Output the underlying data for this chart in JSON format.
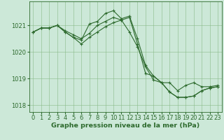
{
  "title": "Graphe pression niveau de la mer (hPa)",
  "x_labels": [
    "0",
    "1",
    "2",
    "3",
    "4",
    "5",
    "6",
    "7",
    "8",
    "9",
    "10",
    "11",
    "12",
    "13",
    "14",
    "15",
    "16",
    "17",
    "18",
    "19",
    "20",
    "21",
    "22",
    "23"
  ],
  "x_values": [
    0,
    1,
    2,
    3,
    4,
    5,
    6,
    7,
    8,
    9,
    10,
    11,
    12,
    13,
    14,
    15,
    16,
    17,
    18,
    19,
    20,
    21,
    22,
    23
  ],
  "series": [
    [
      1020.75,
      1020.9,
      1020.9,
      1021.0,
      1020.75,
      1020.55,
      1020.45,
      1021.05,
      1021.15,
      1021.45,
      1021.55,
      1021.25,
      1021.35,
      1020.5,
      1019.5,
      1019.1,
      1018.85,
      1018.85,
      1018.55,
      1018.75,
      1018.85,
      1018.7,
      1018.7,
      1018.75
    ],
    [
      1020.75,
      1020.9,
      1020.9,
      1021.0,
      1020.75,
      1020.55,
      1020.3,
      1020.55,
      1020.75,
      1020.95,
      1021.1,
      1021.2,
      1020.75,
      1020.2,
      1019.45,
      1018.95,
      1018.85,
      1018.5,
      1018.3,
      1018.3,
      1018.35,
      1018.55,
      1018.65,
      1018.7
    ],
    [
      1020.75,
      1020.9,
      1020.9,
      1021.0,
      1020.8,
      1020.65,
      1020.5,
      1020.7,
      1021.0,
      1021.15,
      1021.3,
      1021.2,
      1021.3,
      1020.3,
      1019.2,
      1019.1,
      1018.85,
      1018.5,
      1018.3,
      1018.3,
      1018.35,
      1018.55,
      1018.65,
      1018.7
    ]
  ],
  "line_color": "#2d6a2d",
  "marker_color": "#2d6a2d",
  "bg_color": "#cce8d8",
  "grid_color": "#88bb88",
  "axis_color": "#2d6a2d",
  "tick_label_color": "#2d6a2d",
  "title_color": "#2d6a2d",
  "ylim": [
    1017.75,
    1021.9
  ],
  "yticks": [
    1018,
    1019,
    1020,
    1021
  ],
  "title_fontsize": 6.8,
  "tick_fontsize": 6.0
}
